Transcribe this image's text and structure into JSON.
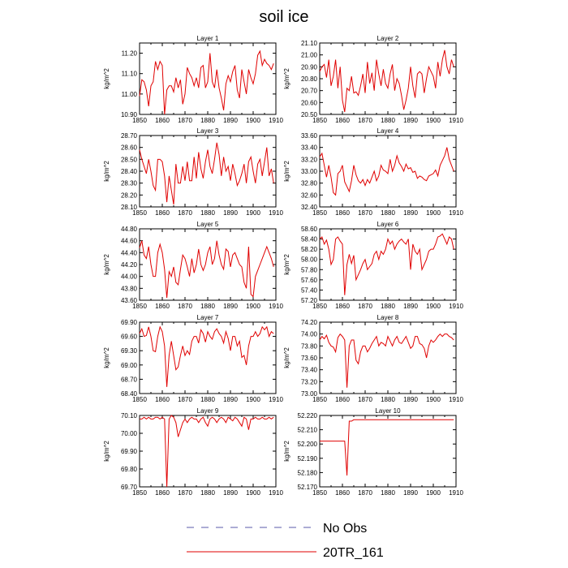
{
  "title": "soil ice",
  "legend": [
    {
      "label": "No Obs",
      "style": "dashed",
      "color": "#5a5aa8"
    },
    {
      "label": "20TR_161",
      "style": "solid",
      "color": "#e00000"
    }
  ],
  "colors": {
    "series": "#e00000",
    "obs": "#5a5aa8"
  },
  "chart_data": [
    {
      "type": "line",
      "title": "Layer 1",
      "ylabel": "kg/m^2",
      "xlim": [
        1850,
        1910
      ],
      "ylim": [
        10.9,
        11.25
      ],
      "yticks": [
        "10.90",
        "11.00",
        "11.10",
        "11.20"
      ],
      "xticks": [
        "1850",
        "1860",
        "1870",
        "1880",
        "1890",
        "1900",
        "1910"
      ],
      "x_start": 1850,
      "series": [
        {
          "name": "20TR_161",
          "values": [
            10.99,
            11.07,
            11.06,
            11.02,
            10.94,
            11.04,
            11.06,
            11.16,
            11.12,
            11.16,
            11.14,
            10.9,
            11.02,
            11.04,
            11.04,
            11.01,
            11.08,
            11.03,
            11.07,
            10.95,
            11.0,
            11.13,
            11.1,
            11.08,
            11.04,
            11.08,
            11.03,
            11.13,
            11.14,
            11.03,
            11.06,
            11.2,
            11.06,
            11.03,
            11.12,
            11.03,
            10.98,
            10.92,
            11.05,
            11.09,
            11.06,
            11.11,
            11.14,
            11.02,
            10.98,
            11.12,
            11.06,
            11.0,
            11.12,
            11.08,
            11.05,
            11.1,
            11.19,
            11.21,
            11.14,
            11.17,
            11.15,
            11.14,
            11.12,
            11.15
          ]
        }
      ]
    },
    {
      "type": "line",
      "title": "Layer 2",
      "ylabel": "kg/m^2",
      "xlim": [
        1850,
        1910
      ],
      "ylim": [
        20.5,
        21.1
      ],
      "yticks": [
        "20.50",
        "20.60",
        "20.70",
        "20.80",
        "20.90",
        "21.00",
        "21.10"
      ],
      "xticks": [
        "1850",
        "1860",
        "1870",
        "1880",
        "1890",
        "1900",
        "1910"
      ],
      "x_start": 1850,
      "series": [
        {
          "name": "20TR_161",
          "values": [
            20.86,
            20.9,
            20.92,
            20.81,
            20.96,
            20.74,
            20.82,
            20.96,
            20.72,
            20.9,
            20.62,
            20.52,
            20.72,
            20.7,
            20.82,
            20.68,
            20.69,
            20.66,
            20.74,
            20.84,
            20.68,
            20.94,
            20.76,
            20.85,
            20.7,
            20.96,
            20.84,
            20.74,
            20.88,
            20.76,
            20.72,
            20.84,
            20.92,
            20.7,
            20.8,
            20.76,
            20.66,
            20.54,
            20.62,
            20.72,
            20.9,
            20.74,
            20.64,
            20.84,
            20.86,
            20.84,
            20.68,
            20.8,
            20.9,
            20.86,
            20.82,
            20.72,
            20.94,
            20.82,
            20.96,
            21.04,
            20.9,
            20.84,
            20.96,
            20.9
          ]
        }
      ]
    },
    {
      "type": "line",
      "title": "Layer 3",
      "ylabel": "kg/m^2",
      "xlim": [
        1850,
        1910
      ],
      "ylim": [
        28.1,
        28.7
      ],
      "yticks": [
        "28.10",
        "28.20",
        "28.30",
        "28.40",
        "28.50",
        "28.60",
        "28.70"
      ],
      "xticks": [
        "1850",
        "1860",
        "1870",
        "1880",
        "1890",
        "1900",
        "1910"
      ],
      "x_start": 1850,
      "series": [
        {
          "name": "20TR_161",
          "values": [
            28.58,
            28.5,
            28.44,
            28.38,
            28.5,
            28.4,
            28.28,
            28.24,
            28.5,
            28.5,
            28.48,
            28.36,
            28.14,
            28.36,
            28.24,
            28.12,
            28.46,
            28.3,
            28.3,
            28.44,
            28.32,
            28.48,
            28.32,
            28.32,
            28.52,
            28.34,
            28.56,
            28.42,
            28.34,
            28.48,
            28.58,
            28.44,
            28.38,
            28.5,
            28.64,
            28.54,
            28.36,
            28.52,
            28.4,
            28.44,
            28.32,
            28.46,
            28.38,
            28.28,
            28.32,
            28.38,
            28.46,
            28.3,
            28.48,
            28.52,
            28.4,
            28.3,
            28.46,
            28.5,
            28.36,
            28.48,
            28.6,
            28.36,
            28.42,
            28.3
          ]
        }
      ]
    },
    {
      "type": "line",
      "title": "Layer 4",
      "ylabel": "kg/m^2",
      "xlim": [
        1850,
        1910
      ],
      "ylim": [
        32.4,
        33.6
      ],
      "yticks": [
        "32.40",
        "32.60",
        "32.80",
        "33.00",
        "33.20",
        "33.40",
        "33.60"
      ],
      "xticks": [
        "1850",
        "1860",
        "1870",
        "1880",
        "1890",
        "1900",
        "1910"
      ],
      "x_start": 1850,
      "series": [
        {
          "name": "20TR_161",
          "values": [
            33.24,
            33.3,
            33.1,
            32.9,
            33.1,
            32.9,
            32.64,
            32.6,
            32.96,
            33.0,
            33.1,
            32.82,
            32.74,
            32.66,
            32.84,
            33.1,
            32.94,
            32.84,
            32.8,
            32.86,
            32.76,
            32.86,
            32.8,
            32.9,
            33.0,
            32.84,
            32.92,
            33.1,
            33.02,
            33.0,
            32.96,
            33.2,
            33.0,
            33.1,
            33.26,
            33.14,
            33.08,
            33.0,
            33.12,
            33.04,
            33.06,
            32.98,
            33.0,
            32.88,
            32.92,
            32.9,
            32.86,
            32.84,
            32.92,
            32.94,
            32.96,
            33.02,
            32.92,
            33.1,
            33.18,
            33.26,
            33.4,
            33.2,
            33.1,
            33.0
          ]
        }
      ]
    },
    {
      "type": "line",
      "title": "Layer 5",
      "ylabel": "kg/m^2",
      "xlim": [
        1850,
        1910
      ],
      "ylim": [
        43.6,
        44.8
      ],
      "yticks": [
        "43.60",
        "43.80",
        "44.00",
        "44.20",
        "44.40",
        "44.60",
        "44.80"
      ],
      "xticks": [
        "1850",
        "1860",
        "1870",
        "1880",
        "1890",
        "1900",
        "1910"
      ],
      "x_start": 1850,
      "series": [
        {
          "name": "20TR_161",
          "values": [
            44.48,
            44.6,
            44.36,
            44.3,
            44.5,
            44.2,
            44.0,
            44.0,
            44.4,
            44.54,
            44.4,
            44.12,
            43.64,
            44.08,
            44.0,
            44.16,
            43.9,
            43.86,
            44.12,
            44.36,
            44.3,
            44.16,
            44.0,
            44.3,
            44.06,
            44.2,
            44.46,
            44.2,
            44.1,
            44.2,
            44.4,
            44.5,
            44.2,
            44.3,
            44.6,
            44.36,
            44.2,
            44.12,
            44.46,
            44.42,
            44.16,
            44.36,
            44.4,
            44.3,
            44.2,
            44.16,
            43.9,
            43.8,
            44.5,
            43.7,
            43.66,
            44.0,
            44.1,
            44.2,
            44.3,
            44.4,
            44.5,
            44.4,
            44.3,
            44.16
          ]
        }
      ]
    },
    {
      "type": "line",
      "title": "Layer 6",
      "ylabel": "kg/m^2",
      "xlim": [
        1850,
        1910
      ],
      "ylim": [
        57.2,
        58.6
      ],
      "yticks": [
        "57.20",
        "57.40",
        "57.60",
        "57.80",
        "58.00",
        "58.20",
        "58.40",
        "58.60"
      ],
      "xticks": [
        "1850",
        "1860",
        "1870",
        "1880",
        "1890",
        "1900",
        "1910"
      ],
      "x_start": 1850,
      "series": [
        {
          "name": "20TR_161",
          "values": [
            58.4,
            58.44,
            58.3,
            58.38,
            58.2,
            57.9,
            58.0,
            58.4,
            58.44,
            58.36,
            58.3,
            57.3,
            57.9,
            58.1,
            57.92,
            58.08,
            57.6,
            57.7,
            57.8,
            57.92,
            58.0,
            57.8,
            57.86,
            57.92,
            58.1,
            58.16,
            58.0,
            58.16,
            58.1,
            58.2,
            58.4,
            58.3,
            58.36,
            58.2,
            58.3,
            58.36,
            58.4,
            58.34,
            58.3,
            58.4,
            57.8,
            58.3,
            58.16,
            58.1,
            58.2,
            57.8,
            57.9,
            58.0,
            58.16,
            58.2,
            58.2,
            58.3,
            58.44,
            58.46,
            58.5,
            58.4,
            58.3,
            58.44,
            58.4,
            58.2
          ]
        }
      ]
    },
    {
      "type": "line",
      "title": "Layer 7",
      "ylabel": "kg/m^2",
      "xlim": [
        1850,
        1910
      ],
      "ylim": [
        68.4,
        69.9
      ],
      "yticks": [
        "68.40",
        "68.70",
        "69.00",
        "69.30",
        "69.60",
        "69.90"
      ],
      "xticks": [
        "1850",
        "1860",
        "1870",
        "1880",
        "1890",
        "1900",
        "1910"
      ],
      "x_start": 1850,
      "series": [
        {
          "name": "20TR_161",
          "values": [
            69.66,
            69.76,
            69.6,
            69.62,
            69.8,
            69.6,
            69.3,
            69.28,
            69.6,
            69.8,
            69.7,
            69.4,
            68.54,
            69.2,
            69.5,
            69.2,
            68.9,
            68.96,
            69.2,
            69.4,
            69.2,
            69.3,
            69.22,
            69.5,
            69.6,
            69.6,
            69.46,
            69.74,
            69.66,
            69.48,
            69.7,
            69.6,
            69.54,
            69.7,
            69.76,
            69.66,
            69.6,
            69.46,
            69.7,
            69.56,
            69.3,
            69.6,
            69.6,
            69.4,
            69.5,
            69.16,
            69.2,
            69.0,
            69.4,
            69.6,
            69.6,
            69.7,
            69.6,
            69.66,
            69.8,
            69.74,
            69.8,
            69.6,
            69.7,
            69.66
          ]
        }
      ]
    },
    {
      "type": "line",
      "title": "Layer 8",
      "ylabel": "kg/m^2",
      "xlim": [
        1850,
        1910
      ],
      "ylim": [
        73.0,
        74.2
      ],
      "yticks": [
        "73.00",
        "73.20",
        "73.40",
        "73.60",
        "73.80",
        "74.00",
        "74.20"
      ],
      "xticks": [
        "1850",
        "1860",
        "1870",
        "1880",
        "1890",
        "1900",
        "1910"
      ],
      "x_start": 1850,
      "series": [
        {
          "name": "20TR_161",
          "values": [
            73.9,
            73.96,
            73.92,
            73.98,
            73.86,
            73.8,
            73.78,
            73.7,
            73.94,
            74.0,
            73.96,
            73.9,
            73.1,
            73.8,
            73.9,
            73.9,
            73.56,
            73.5,
            73.7,
            73.8,
            73.8,
            73.7,
            73.76,
            73.84,
            73.9,
            73.96,
            73.8,
            73.86,
            73.84,
            73.8,
            73.96,
            73.88,
            73.8,
            73.9,
            73.96,
            73.86,
            73.84,
            73.9,
            73.96,
            73.86,
            73.76,
            73.8,
            73.96,
            73.96,
            73.84,
            73.82,
            73.76,
            73.6,
            73.8,
            73.9,
            73.86,
            73.9,
            73.96,
            74.0,
            73.96,
            74.0,
            74.0,
            73.96,
            73.94,
            73.9
          ]
        }
      ]
    },
    {
      "type": "line",
      "title": "Layer 9",
      "ylabel": "kg/m^2",
      "xlim": [
        1850,
        1910
      ],
      "ylim": [
        69.7,
        70.1
      ],
      "yticks": [
        "69.70",
        "69.80",
        "69.90",
        "70.00",
        "70.10"
      ],
      "xticks": [
        "1850",
        "1860",
        "1870",
        "1880",
        "1890",
        "1900",
        "1910"
      ],
      "x_start": 1850,
      "series": [
        {
          "name": "20TR_161",
          "values": [
            70.08,
            70.08,
            70.09,
            70.08,
            70.09,
            70.08,
            70.08,
            70.09,
            70.09,
            70.08,
            70.09,
            70.08,
            69.7,
            70.08,
            70.1,
            70.09,
            70.06,
            69.98,
            70.02,
            70.06,
            70.08,
            70.06,
            70.08,
            70.09,
            70.08,
            70.08,
            70.06,
            70.08,
            70.09,
            70.06,
            70.04,
            70.08,
            70.09,
            70.08,
            70.06,
            70.08,
            70.09,
            70.08,
            70.06,
            70.09,
            70.08,
            70.07,
            70.09,
            70.08,
            70.06,
            70.04,
            70.09,
            70.08,
            70.02,
            70.08,
            70.08,
            70.09,
            70.08,
            70.08,
            70.09,
            70.08,
            70.08,
            70.09,
            70.08,
            70.09
          ]
        }
      ]
    },
    {
      "type": "line",
      "title": "Layer 10",
      "ylabel": "kg/m^2",
      "xlim": [
        1850,
        1910
      ],
      "ylim": [
        52.17,
        52.22
      ],
      "yticks": [
        "52.170",
        "52.180",
        "52.190",
        "52.200",
        "52.210",
        "52.220"
      ],
      "xticks": [
        "1850",
        "1860",
        "1870",
        "1880",
        "1890",
        "1900",
        "1910"
      ],
      "x_start": 1850,
      "series": [
        {
          "name": "20TR_161",
          "values": [
            52.202,
            52.202,
            52.202,
            52.202,
            52.202,
            52.202,
            52.202,
            52.202,
            52.202,
            52.202,
            52.202,
            52.202,
            52.178,
            52.216,
            52.216,
            52.217,
            52.217,
            52.217,
            52.217,
            52.217,
            52.217,
            52.217,
            52.217,
            52.217,
            52.217,
            52.217,
            52.217,
            52.217,
            52.217,
            52.217,
            52.217,
            52.217,
            52.217,
            52.217,
            52.217,
            52.217,
            52.217,
            52.217,
            52.217,
            52.217,
            52.217,
            52.217,
            52.217,
            52.217,
            52.217,
            52.217,
            52.217,
            52.217,
            52.217,
            52.217,
            52.217,
            52.217,
            52.217,
            52.217,
            52.217,
            52.217,
            52.217,
            52.217,
            52.217,
            52.217
          ]
        }
      ]
    }
  ]
}
